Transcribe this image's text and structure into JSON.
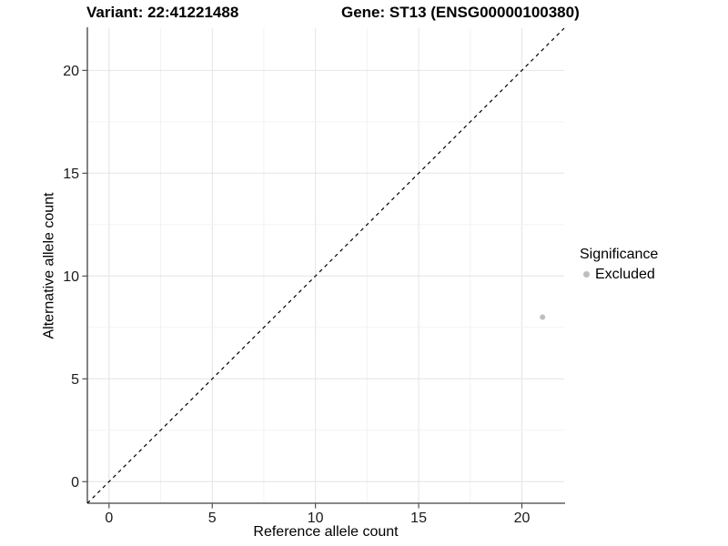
{
  "titles": {
    "variant": "Variant: 22:41221488",
    "gene": "Gene: ST13 (ENSG00000100380)"
  },
  "chart_data": {
    "type": "scatter",
    "title": "Variant: 22:41221488   Gene: ST13 (ENSG00000100380)",
    "xlabel": "Reference allele count",
    "ylabel": "Alternative allele count",
    "x_ticks": [
      0,
      5,
      10,
      15,
      20
    ],
    "y_ticks": [
      0,
      5,
      10,
      15,
      20
    ],
    "xlim": [
      -1.05,
      22.05
    ],
    "ylim": [
      -1.05,
      22.05
    ],
    "grid": "on",
    "grid_major_step": 5,
    "grid_minor_step": 2.5,
    "identity_line": {
      "style": "dashed",
      "from": [
        -1.05,
        -1.05
      ],
      "to": [
        22.05,
        22.05
      ]
    },
    "points": [
      {
        "x": 21,
        "y": 8,
        "series": "Excluded"
      }
    ],
    "legend": {
      "position": "right",
      "title": "Significance",
      "items": [
        {
          "label": "Excluded",
          "color": "#bebebe"
        }
      ]
    }
  },
  "colors": {
    "background": "#ffffff",
    "point": "#bebebe",
    "identity_line": "#000000",
    "axis_line": "#404040",
    "tick_mark": "#404040",
    "tick_label": "#1a1a1a",
    "grid_major": "#e4e4e4",
    "grid_minor": "#f1f1f1"
  }
}
